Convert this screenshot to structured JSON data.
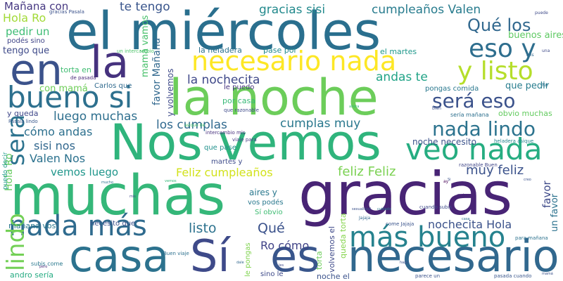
{
  "words": [
    {
      "text": "el miércoles",
      "color": "#2a6f8e"
    },
    {
      "text": "la noche",
      "color": "#6ccd5a"
    },
    {
      "text": "Nos vemos",
      "color": "#2fb47c"
    },
    {
      "text": "muchas",
      "color": "#35b779"
    },
    {
      "text": "gracias",
      "color": "#482475"
    },
    {
      "text": "casa",
      "color": "#2c728e"
    },
    {
      "text": "Sí",
      "color": "#3e4a89"
    },
    {
      "text": "es",
      "color": "#39568c"
    },
    {
      "text": "necesario",
      "color": "#31688e"
    },
    {
      "text": "en",
      "color": "#3b528b"
    },
    {
      "text": "la",
      "color": "#46327e"
    },
    {
      "text": "bueno si",
      "color": "#2d708e"
    },
    {
      "text": "necesario nada",
      "color": "#fde725"
    },
    {
      "text": "veo nada",
      "color": "#26ad81"
    },
    {
      "text": "nada más",
      "color": "#2f6b8e"
    },
    {
      "text": "más bueno",
      "color": "#26828e"
    },
    {
      "text": "eso y",
      "color": "#2e6e8e"
    },
    {
      "text": "y listo",
      "color": "#b5de2b"
    },
    {
      "text": "será eso",
      "color": "#3b528b"
    },
    {
      "text": "nada lindo",
      "color": "#2c738e"
    },
    {
      "text": "Qué los",
      "color": "#31688e"
    },
    {
      "text": "sera",
      "color": "#2c738e"
    },
    {
      "text": "lindo",
      "color": "#73d056"
    },
    {
      "text": "gracias sisi",
      "color": "#238a8d"
    },
    {
      "text": "cumpleaños Valen",
      "color": "#287c8e"
    },
    {
      "text": "te tengo",
      "color": "#39558c"
    },
    {
      "text": "Mañana con",
      "color": "#453781"
    },
    {
      "text": "Hola Ro",
      "color": "#a2da37"
    },
    {
      "text": "pedir un",
      "color": "#3dbc74"
    },
    {
      "text": "podés sino",
      "color": "#404688"
    },
    {
      "text": "tengo que",
      "color": "#3e4a89"
    },
    {
      "text": "la nochecita",
      "color": "#3f4889"
    },
    {
      "text": "andas te",
      "color": "#20a386"
    },
    {
      "text": "con mamá",
      "color": "#6ece58"
    },
    {
      "text": "luego muchas",
      "color": "#2e6f8e"
    },
    {
      "text": "cómo andas",
      "color": "#2d708e"
    },
    {
      "text": "los cumplas",
      "color": "#30698e"
    },
    {
      "text": "cumplas muy",
      "color": "#2a788e"
    },
    {
      "text": "sisi nos",
      "color": "#31678e"
    },
    {
      "text": "Valen Nos",
      "color": "#2c728e"
    },
    {
      "text": "vemos luego",
      "color": "#1f968b"
    },
    {
      "text": "Feliz cumpleaños",
      "color": "#d2e21b"
    },
    {
      "text": "feliz Feliz",
      "color": "#7ad151"
    },
    {
      "text": "muy feliz",
      "color": "#3b528b"
    },
    {
      "text": "listo",
      "color": "#2c728e"
    },
    {
      "text": "Qué",
      "color": "#3b528b"
    },
    {
      "text": "nochecita Hola",
      "color": "#3b528b"
    },
    {
      "text": "Ro cómo",
      "color": "#404387"
    },
    {
      "text": "aires y",
      "color": "#2a788e"
    },
    {
      "text": "buenos aires",
      "color": "#5ec962"
    },
    {
      "text": "que pedir",
      "color": "#287d8e"
    },
    {
      "text": "la heladera",
      "color": "#2c728e"
    },
    {
      "text": "pase por",
      "color": "#23898e"
    },
    {
      "text": "el martes",
      "color": "#1f988b"
    },
    {
      "text": "torta en",
      "color": "#40bd72"
    },
    {
      "text": "Carlos que",
      "color": "#306a8e"
    },
    {
      "text": "favor Mañana",
      "color": "#31688e"
    },
    {
      "text": "mamá vamos",
      "color": "#4ac16d"
    },
    {
      "text": "y volvemos",
      "color": "#3e4a89"
    },
    {
      "text": "le puedo",
      "color": "#46327e"
    },
    {
      "text": "por casa",
      "color": "#38b977"
    },
    {
      "text": "pongas comida",
      "color": "#2a788e"
    },
    {
      "text": "y queda",
      "color": "#3f4889"
    },
    {
      "text": "obvio muchas",
      "color": "#63cb5f"
    },
    {
      "text": "noche necesito",
      "color": "#3b528b"
    },
    {
      "text": "favor",
      "color": "#3e4a89"
    },
    {
      "text": "un favor",
      "color": "#2c728e"
    },
    {
      "text": "vos podés",
      "color": "#2a788e"
    },
    {
      "text": "Sí obvio",
      "color": "#3fbc73"
    },
    {
      "text": "martes y",
      "color": "#3e4c8a"
    },
    {
      "text": "que pase",
      "color": "#21918c"
    },
    {
      "text": "mañana vos",
      "color": "#2a788e"
    },
    {
      "text": "necesito que",
      "color": "#3b528b"
    },
    {
      "text": "volvemos el",
      "color": "#3e4989"
    },
    {
      "text": "torta",
      "color": "#6ccd5a"
    },
    {
      "text": "queda torta",
      "color": "#84d44b"
    },
    {
      "text": "le pongas",
      "color": "#7fd34e"
    },
    {
      "text": "subis come",
      "color": "#2a788e"
    },
    {
      "text": "andro sería",
      "color": "#25ab82"
    },
    {
      "text": "sino le",
      "color": "#3e4a89"
    },
    {
      "text": "noche el",
      "color": "#3b528b"
    },
    {
      "text": "Hola Ro",
      "color": "#65cb5e"
    },
    {
      "text": "puedo decir",
      "color": "#1e9b8a"
    },
    {
      "text": "sería mañana",
      "color": "#2d708e"
    },
    {
      "text": "Buen viaje",
      "color": "#2d708e"
    },
    {
      "text": "Pasala lindo",
      "color": "#38598c"
    },
    {
      "text": "de pasada",
      "color": "#482878"
    },
    {
      "text": "un intercambio",
      "color": "#4ec36b"
    },
    {
      "text": "gracias Pasala",
      "color": "#3b528b"
    },
    {
      "text": "que razonable",
      "color": "#3e4a89"
    },
    {
      "text": "viaje para",
      "color": "#443b84"
    },
    {
      "text": "intercambio mis",
      "color": "#472f7d"
    },
    {
      "text": "heladera asique",
      "color": "#25848e"
    },
    {
      "text": "razonable Buen",
      "color": "#404688"
    },
    {
      "text": "cuando subis",
      "color": "#3e4a89"
    },
    {
      "text": "come Jajaja",
      "color": "#3a548c"
    },
    {
      "text": "para mañana",
      "color": "#2c728e"
    },
    {
      "text": "pasada cuando",
      "color": "#39568c"
    },
    {
      "text": "parece un",
      "color": "#3b528b"
    },
    {
      "text": "asique de",
      "color": "#4ac16d"
    },
    {
      "text": "bien",
      "color": "#3b528b"
    },
    {
      "text": "una",
      "color": "#3e4a89"
    },
    {
      "text": "mis",
      "color": "#31688e"
    },
    {
      "text": "pero",
      "color": "#482878"
    },
    {
      "text": "sexualidad",
      "color": "#3b528b"
    },
    {
      "text": "Ro",
      "color": "#2c728e"
    },
    {
      "text": "creo",
      "color": "#3b528b"
    },
    {
      "text": "ay",
      "color": "#440154"
    },
    {
      "text": "puede",
      "color": "#3e4a89"
    },
    {
      "text": "Jajaja",
      "color": "#31688e"
    },
    {
      "text": "mucho",
      "color": "#2c728e"
    },
    {
      "text": "vemos",
      "color": "#35b779"
    },
    {
      "text": "Si",
      "color": "#3b528b"
    },
    {
      "text": "cuidado",
      "color": "#2a788e"
    },
    {
      "text": "mis",
      "color": "#3e4a89"
    },
    {
      "text": "mejor",
      "color": "#482878"
    },
    {
      "text": "dale",
      "color": "#31688e"
    },
    {
      "text": "mamá",
      "color": "#3b528b"
    },
    {
      "text": "ahora",
      "color": "#35b779"
    },
    {
      "text": "les",
      "color": "#3e4a89"
    },
    {
      "text": "casa",
      "color": "#2c728e"
    },
    {
      "text": "hago",
      "color": "#3b528b"
    }
  ]
}
